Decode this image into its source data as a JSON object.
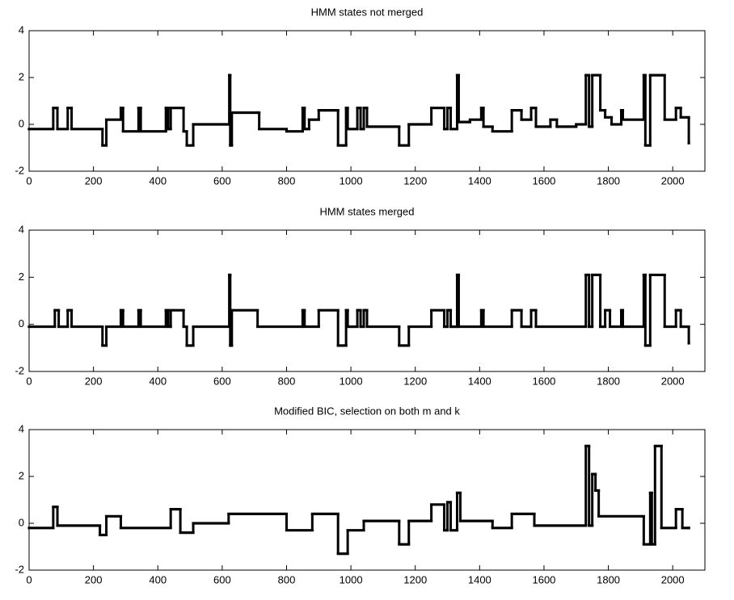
{
  "chart_data": [
    {
      "type": "step",
      "title": "HMM states not merged",
      "color": "#000000",
      "xlim": [
        0,
        2100
      ],
      "xticks": [
        0,
        200,
        400,
        600,
        800,
        1000,
        1200,
        1400,
        1600,
        1800,
        2000
      ],
      "ylim": [
        -2,
        4
      ],
      "yticks": [
        -2,
        0,
        2,
        4
      ],
      "x": [
        0,
        75,
        88,
        120,
        132,
        228,
        240,
        285,
        292,
        340,
        347,
        425,
        432,
        440,
        480,
        490,
        510,
        622,
        625,
        630,
        710,
        715,
        800,
        850,
        856,
        870,
        900,
        960,
        985,
        990,
        1020,
        1030,
        1040,
        1050,
        1150,
        1180,
        1250,
        1290,
        1300,
        1310,
        1330,
        1335,
        1370,
        1405,
        1412,
        1440,
        1500,
        1530,
        1560,
        1575,
        1620,
        1640,
        1700,
        1730,
        1740,
        1750,
        1775,
        1790,
        1810,
        1840,
        1845,
        1910,
        1915,
        1930,
        1975,
        2010,
        2025,
        2050
      ],
      "values": [
        -0.2,
        0.7,
        -0.2,
        0.7,
        -0.2,
        -0.9,
        0.2,
        0.7,
        -0.3,
        0.7,
        -0.3,
        0.7,
        -0.2,
        0.7,
        -0.3,
        -0.9,
        0,
        2.1,
        -0.9,
        0.5,
        0.5,
        -0.2,
        -0.3,
        0.7,
        -0.2,
        0.2,
        0.6,
        -0.9,
        0.7,
        -0.2,
        0.7,
        -0.2,
        0.7,
        -0.1,
        -0.9,
        0,
        0.7,
        -0.2,
        0.7,
        -0.2,
        2.1,
        0.1,
        0.2,
        0.7,
        -0.1,
        -0.3,
        0.6,
        0.2,
        0.7,
        -0.1,
        0.2,
        -0.1,
        0,
        2.1,
        -0.1,
        2.1,
        0.6,
        0.3,
        0,
        0.6,
        0.2,
        2.1,
        -0.9,
        2.1,
        0.2,
        0.7,
        0.3,
        -0.8
      ]
    },
    {
      "type": "step",
      "title": "HMM states merged",
      "color": "#000000",
      "xlim": [
        0,
        2100
      ],
      "xticks": [
        0,
        200,
        400,
        600,
        800,
        1000,
        1200,
        1400,
        1600,
        1800,
        2000
      ],
      "ylim": [
        -2,
        4
      ],
      "yticks": [
        -2,
        0,
        2,
        4
      ],
      "x": [
        0,
        80,
        92,
        120,
        132,
        228,
        240,
        285,
        292,
        340,
        347,
        425,
        432,
        440,
        480,
        490,
        510,
        622,
        625,
        630,
        710,
        850,
        856,
        900,
        960,
        985,
        990,
        1020,
        1030,
        1040,
        1050,
        1150,
        1180,
        1250,
        1290,
        1300,
        1310,
        1330,
        1335,
        1405,
        1412,
        1500,
        1530,
        1560,
        1575,
        1730,
        1740,
        1750,
        1775,
        1790,
        1805,
        1840,
        1845,
        1910,
        1915,
        1930,
        1975,
        2010,
        2025,
        2050
      ],
      "values": [
        -0.1,
        0.6,
        -0.1,
        0.6,
        -0.1,
        -0.9,
        -0.1,
        0.6,
        -0.1,
        0.6,
        -0.1,
        0.6,
        -0.1,
        0.6,
        -0.1,
        -0.9,
        -0.1,
        2.1,
        -0.9,
        0.6,
        -0.1,
        0.6,
        -0.1,
        0.6,
        -0.9,
        0.6,
        -0.1,
        0.6,
        -0.1,
        0.6,
        -0.1,
        -0.9,
        -0.1,
        0.6,
        -0.1,
        0.6,
        -0.1,
        2.1,
        -0.1,
        0.6,
        -0.1,
        0.6,
        -0.1,
        0.6,
        -0.1,
        2.1,
        -0.1,
        2.1,
        -0.1,
        0.6,
        -0.1,
        0.6,
        -0.1,
        2.1,
        -0.9,
        2.1,
        -0.1,
        0.6,
        -0.1,
        -0.8
      ]
    },
    {
      "type": "step",
      "title": "Modified BIC, selection on both m and k",
      "color": "#000000",
      "xlim": [
        0,
        2100
      ],
      "xticks": [
        0,
        200,
        400,
        600,
        800,
        1000,
        1200,
        1400,
        1600,
        1800,
        2000
      ],
      "ylim": [
        -2,
        4
      ],
      "yticks": [
        -2,
        0,
        2,
        4
      ],
      "x": [
        0,
        75,
        88,
        220,
        240,
        285,
        440,
        470,
        510,
        620,
        800,
        880,
        960,
        990,
        1040,
        1150,
        1180,
        1250,
        1290,
        1300,
        1310,
        1330,
        1340,
        1440,
        1500,
        1570,
        1730,
        1740,
        1750,
        1760,
        1770,
        1910,
        1930,
        1935,
        1945,
        1965,
        2010,
        2030,
        2050
      ],
      "values": [
        -0.2,
        0.7,
        -0.1,
        -0.5,
        0.3,
        -0.2,
        0.6,
        -0.4,
        0,
        0.4,
        -0.3,
        0.4,
        -1.3,
        -0.3,
        0.1,
        -0.9,
        0.1,
        0.8,
        -0.3,
        0.9,
        -0.3,
        1.3,
        0.1,
        -0.2,
        0.4,
        -0.1,
        3.3,
        -0.1,
        2.1,
        1.4,
        0.3,
        -0.9,
        1.3,
        -0.9,
        3.3,
        -0.2,
        0.6,
        -0.2,
        -0.2
      ]
    }
  ]
}
